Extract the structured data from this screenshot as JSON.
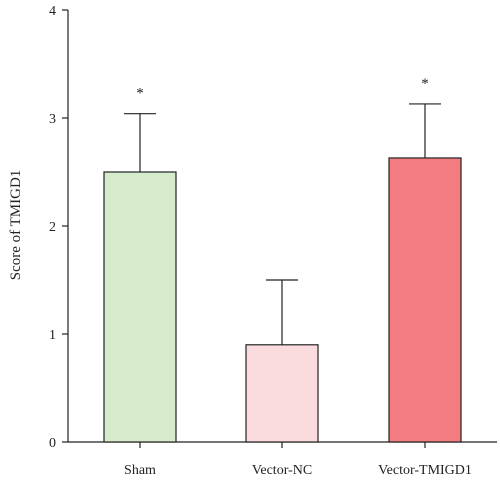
{
  "chart_data": {
    "type": "bar",
    "ylabel": "Score of TMIGD1",
    "ylim": [
      0,
      4
    ],
    "yticks": [
      0,
      1,
      2,
      3,
      4
    ],
    "categories": [
      "Sham",
      "Vector-NC",
      "Vector-TMIGD1"
    ],
    "values": [
      2.5,
      0.9,
      2.63
    ],
    "error_upper": [
      3.04,
      1.5,
      3.13
    ],
    "annotations": [
      "*",
      "",
      "*"
    ],
    "colors": [
      "#d6ebcc",
      "#fadcdf",
      "#f27c80"
    ],
    "edge_color": "#222222"
  }
}
